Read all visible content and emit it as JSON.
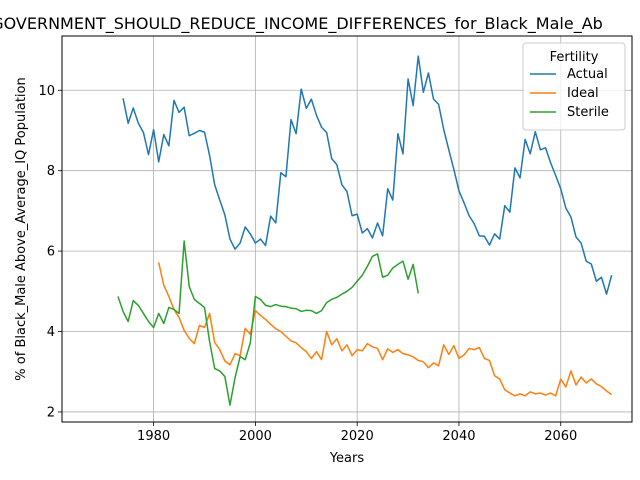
{
  "chart_data": {
    "type": "line",
    "title": "_GOVERNMENT_SHOULD_REDUCE_INCOME_DIFFERENCES_for_Black_Male_Ab",
    "xlabel": "Years",
    "ylabel": "% of Black_Male Above_Average_IQ Population",
    "xlim": [
      1962,
      2074
    ],
    "ylim": [
      1.75,
      11.35
    ],
    "xticks": [
      1980,
      2000,
      2020,
      2040,
      2060
    ],
    "yticks": [
      2,
      4,
      6,
      8,
      10
    ],
    "grid": true,
    "legend": {
      "title": "Fertility",
      "placement": "top-right"
    },
    "series": [
      {
        "name": "Actual",
        "color": "#1f77b4",
        "points": [
          [
            1974,
            9.8
          ],
          [
            1975,
            9.18
          ],
          [
            1976,
            9.56
          ],
          [
            1977,
            9.18
          ],
          [
            1978,
            8.95
          ],
          [
            1979,
            8.4
          ],
          [
            1980,
            9.02
          ],
          [
            1981,
            8.22
          ],
          [
            1982,
            8.9
          ],
          [
            1983,
            8.62
          ],
          [
            1984,
            9.75
          ],
          [
            1985,
            9.45
          ],
          [
            1986,
            9.58
          ],
          [
            1987,
            8.87
          ],
          [
            1988,
            8.93
          ],
          [
            1989,
            9.0
          ],
          [
            1990,
            8.96
          ],
          [
            1991,
            8.38
          ],
          [
            1992,
            7.65
          ],
          [
            1993,
            7.27
          ],
          [
            1994,
            6.9
          ],
          [
            1995,
            6.3
          ],
          [
            1996,
            6.05
          ],
          [
            1997,
            6.2
          ],
          [
            1998,
            6.6
          ],
          [
            1999,
            6.43
          ],
          [
            2000,
            6.2
          ],
          [
            2001,
            6.3
          ],
          [
            2002,
            6.14
          ],
          [
            2003,
            6.87
          ],
          [
            2004,
            6.7
          ],
          [
            2005,
            7.95
          ],
          [
            2006,
            7.85
          ],
          [
            2007,
            9.27
          ],
          [
            2008,
            8.92
          ],
          [
            2009,
            10.03
          ],
          [
            2010,
            9.55
          ],
          [
            2011,
            9.78
          ],
          [
            2012,
            9.38
          ],
          [
            2013,
            9.08
          ],
          [
            2014,
            8.95
          ],
          [
            2015,
            8.3
          ],
          [
            2016,
            8.15
          ],
          [
            2017,
            7.65
          ],
          [
            2018,
            7.48
          ],
          [
            2019,
            6.88
          ],
          [
            2020,
            6.92
          ],
          [
            2021,
            6.45
          ],
          [
            2022,
            6.56
          ],
          [
            2023,
            6.33
          ],
          [
            2024,
            6.7
          ],
          [
            2025,
            6.38
          ],
          [
            2026,
            7.55
          ],
          [
            2027,
            7.27
          ],
          [
            2028,
            8.92
          ],
          [
            2029,
            8.42
          ],
          [
            2030,
            10.28
          ],
          [
            2031,
            9.62
          ],
          [
            2032,
            10.85
          ],
          [
            2033,
            9.95
          ],
          [
            2034,
            10.43
          ],
          [
            2035,
            9.78
          ],
          [
            2036,
            9.65
          ],
          [
            2037,
            9.03
          ],
          [
            2038,
            8.52
          ],
          [
            2039,
            8.03
          ],
          [
            2040,
            7.5
          ],
          [
            2041,
            7.2
          ],
          [
            2042,
            6.88
          ],
          [
            2043,
            6.68
          ],
          [
            2044,
            6.38
          ],
          [
            2045,
            6.37
          ],
          [
            2046,
            6.15
          ],
          [
            2047,
            6.43
          ],
          [
            2048,
            6.3
          ],
          [
            2049,
            7.13
          ],
          [
            2050,
            6.97
          ],
          [
            2051,
            8.07
          ],
          [
            2052,
            7.82
          ],
          [
            2053,
            8.78
          ],
          [
            2054,
            8.42
          ],
          [
            2055,
            8.97
          ],
          [
            2056,
            8.52
          ],
          [
            2057,
            8.57
          ],
          [
            2058,
            8.2
          ],
          [
            2059,
            7.88
          ],
          [
            2060,
            7.55
          ],
          [
            2061,
            7.07
          ],
          [
            2062,
            6.85
          ],
          [
            2063,
            6.35
          ],
          [
            2064,
            6.2
          ],
          [
            2065,
            5.75
          ],
          [
            2066,
            5.68
          ],
          [
            2067,
            5.25
          ],
          [
            2068,
            5.35
          ],
          [
            2069,
            4.93
          ],
          [
            2070,
            5.4
          ]
        ]
      },
      {
        "name": "Ideal",
        "color": "#ff7f0e",
        "points": [
          [
            1981,
            5.72
          ],
          [
            1982,
            5.15
          ],
          [
            1983,
            4.87
          ],
          [
            1984,
            4.55
          ],
          [
            1985,
            4.35
          ],
          [
            1986,
            4.03
          ],
          [
            1987,
            3.83
          ],
          [
            1988,
            3.7
          ],
          [
            1989,
            4.15
          ],
          [
            1990,
            4.1
          ],
          [
            1991,
            4.45
          ],
          [
            1992,
            3.73
          ],
          [
            1993,
            3.55
          ],
          [
            1994,
            3.27
          ],
          [
            1995,
            3.17
          ],
          [
            1996,
            3.45
          ],
          [
            1997,
            3.4
          ],
          [
            1998,
            4.08
          ],
          [
            1999,
            3.93
          ],
          [
            2000,
            4.52
          ],
          [
            2001,
            4.4
          ],
          [
            2002,
            4.3
          ],
          [
            2003,
            4.18
          ],
          [
            2004,
            4.07
          ],
          [
            2005,
            4.0
          ],
          [
            2006,
            3.88
          ],
          [
            2007,
            3.77
          ],
          [
            2008,
            3.72
          ],
          [
            2009,
            3.6
          ],
          [
            2010,
            3.5
          ],
          [
            2011,
            3.33
          ],
          [
            2012,
            3.5
          ],
          [
            2013,
            3.3
          ],
          [
            2014,
            4.0
          ],
          [
            2015,
            3.67
          ],
          [
            2016,
            3.82
          ],
          [
            2017,
            3.52
          ],
          [
            2018,
            3.67
          ],
          [
            2019,
            3.4
          ],
          [
            2020,
            3.55
          ],
          [
            2021,
            3.52
          ],
          [
            2022,
            3.7
          ],
          [
            2023,
            3.62
          ],
          [
            2024,
            3.58
          ],
          [
            2025,
            3.3
          ],
          [
            2026,
            3.57
          ],
          [
            2027,
            3.48
          ],
          [
            2028,
            3.55
          ],
          [
            2029,
            3.45
          ],
          [
            2030,
            3.42
          ],
          [
            2031,
            3.37
          ],
          [
            2032,
            3.28
          ],
          [
            2033,
            3.25
          ],
          [
            2034,
            3.1
          ],
          [
            2035,
            3.22
          ],
          [
            2036,
            3.15
          ],
          [
            2037,
            3.67
          ],
          [
            2038,
            3.43
          ],
          [
            2039,
            3.65
          ],
          [
            2040,
            3.33
          ],
          [
            2041,
            3.42
          ],
          [
            2042,
            3.58
          ],
          [
            2043,
            3.55
          ],
          [
            2044,
            3.6
          ],
          [
            2045,
            3.33
          ],
          [
            2046,
            3.28
          ],
          [
            2047,
            2.9
          ],
          [
            2048,
            2.82
          ],
          [
            2049,
            2.55
          ],
          [
            2050,
            2.47
          ],
          [
            2051,
            2.4
          ],
          [
            2052,
            2.45
          ],
          [
            2053,
            2.4
          ],
          [
            2054,
            2.5
          ],
          [
            2055,
            2.45
          ],
          [
            2056,
            2.47
          ],
          [
            2057,
            2.42
          ],
          [
            2058,
            2.47
          ],
          [
            2059,
            2.4
          ],
          [
            2060,
            2.82
          ],
          [
            2061,
            2.62
          ],
          [
            2062,
            3.02
          ],
          [
            2063,
            2.67
          ],
          [
            2064,
            2.87
          ],
          [
            2065,
            2.72
          ],
          [
            2066,
            2.82
          ],
          [
            2067,
            2.7
          ],
          [
            2068,
            2.63
          ],
          [
            2069,
            2.52
          ],
          [
            2070,
            2.43
          ]
        ]
      },
      {
        "name": "Sterile",
        "color": "#2ca02c",
        "points": [
          [
            1973,
            4.87
          ],
          [
            1974,
            4.5
          ],
          [
            1975,
            4.25
          ],
          [
            1976,
            4.77
          ],
          [
            1977,
            4.65
          ],
          [
            1978,
            4.45
          ],
          [
            1979,
            4.25
          ],
          [
            1980,
            4.1
          ],
          [
            1981,
            4.45
          ],
          [
            1982,
            4.2
          ],
          [
            1983,
            4.6
          ],
          [
            1984,
            4.55
          ],
          [
            1985,
            4.45
          ],
          [
            1986,
            6.25
          ],
          [
            1987,
            5.12
          ],
          [
            1988,
            4.8
          ],
          [
            1989,
            4.7
          ],
          [
            1990,
            4.6
          ],
          [
            1991,
            3.75
          ],
          [
            1992,
            3.08
          ],
          [
            1993,
            3.02
          ],
          [
            1994,
            2.88
          ],
          [
            1995,
            2.17
          ],
          [
            1996,
            2.85
          ],
          [
            1997,
            3.38
          ],
          [
            1998,
            3.3
          ],
          [
            1999,
            3.72
          ],
          [
            2000,
            4.87
          ],
          [
            2001,
            4.8
          ],
          [
            2002,
            4.65
          ],
          [
            2003,
            4.62
          ],
          [
            2004,
            4.67
          ],
          [
            2005,
            4.63
          ],
          [
            2006,
            4.62
          ],
          [
            2007,
            4.58
          ],
          [
            2008,
            4.57
          ],
          [
            2009,
            4.5
          ],
          [
            2010,
            4.53
          ],
          [
            2011,
            4.52
          ],
          [
            2012,
            4.45
          ],
          [
            2013,
            4.52
          ],
          [
            2014,
            4.72
          ],
          [
            2015,
            4.8
          ],
          [
            2016,
            4.85
          ],
          [
            2017,
            4.93
          ],
          [
            2018,
            5.0
          ],
          [
            2019,
            5.1
          ],
          [
            2020,
            5.25
          ],
          [
            2021,
            5.4
          ],
          [
            2022,
            5.62
          ],
          [
            2023,
            5.87
          ],
          [
            2024,
            5.93
          ],
          [
            2025,
            5.35
          ],
          [
            2026,
            5.4
          ],
          [
            2027,
            5.58
          ],
          [
            2028,
            5.67
          ],
          [
            2029,
            5.75
          ],
          [
            2030,
            5.3
          ],
          [
            2031,
            5.67
          ],
          [
            2032,
            4.95
          ]
        ]
      }
    ]
  }
}
